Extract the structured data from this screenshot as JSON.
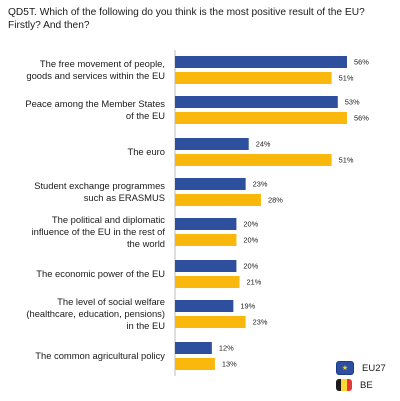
{
  "question": "QD5T. Which of the following do you think is the most positive result of the EU? Firstly? And then?",
  "colors": {
    "eu27": "#2e4f9e",
    "be": "#fbb80c",
    "belgium_flag": [
      "#1b1b1b",
      "#fdd835",
      "#e53935"
    ],
    "eu_flag_bg": "#2c4fa3",
    "eu_flag_stars": "#ffd200"
  },
  "legend": [
    {
      "label": "EU27",
      "icon": "eu-flag-icon"
    },
    {
      "label": "BE",
      "icon": "belgium-flag-icon"
    }
  ],
  "chart_data": {
    "type": "bar",
    "orientation": "horizontal",
    "categories": [
      [
        "The free movement of people,",
        "goods and services within the EU"
      ],
      [
        "Peace among the Member States",
        "of the EU"
      ],
      [
        "The euro"
      ],
      [
        "Student exchange programmes",
        "such as ERASMUS"
      ],
      [
        "The political and diplomatic",
        "influence of the EU in the rest of",
        "the world"
      ],
      [
        "The economic power of the EU"
      ],
      [
        "The level of social welfare",
        "(healthcare, education, pensions)",
        "in the EU"
      ],
      [
        "The common agricultural policy"
      ]
    ],
    "series": [
      {
        "name": "EU27",
        "values": [
          56,
          53,
          24,
          23,
          20,
          20,
          19,
          12
        ]
      },
      {
        "name": "BE",
        "values": [
          51,
          56,
          51,
          28,
          20,
          21,
          23,
          13
        ]
      }
    ],
    "unit": "%",
    "xlim": [
      0,
      56
    ],
    "grid": false,
    "legend_position": "bottom-right"
  }
}
